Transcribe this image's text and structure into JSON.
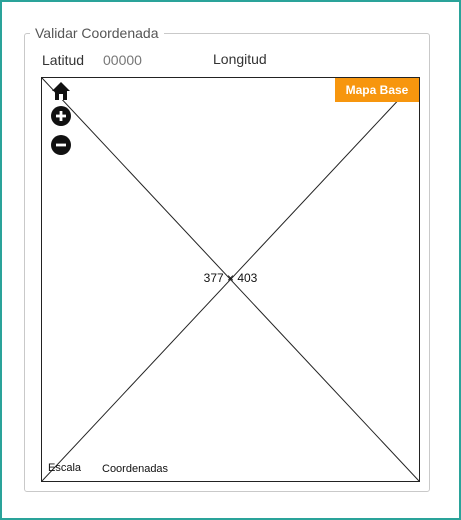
{
  "panel": {
    "legend": "Validar Coordenada",
    "latitude_label": "Latitud",
    "latitude_value": "00000",
    "longitude_label": "Longitud"
  },
  "map": {
    "base_button_label": "Mapa Base",
    "placeholder_dimensions": "377 × 403",
    "scale_label": "Escala",
    "coordinates_label": "Coordenadas",
    "icons": {
      "home": "home-icon",
      "zoom_in": "zoom-in-icon",
      "zoom_out": "zoom-out-icon"
    }
  },
  "colors": {
    "frame_border": "#2aa39a",
    "accent_button": "#f7960e",
    "icon_fill": "#111111"
  }
}
